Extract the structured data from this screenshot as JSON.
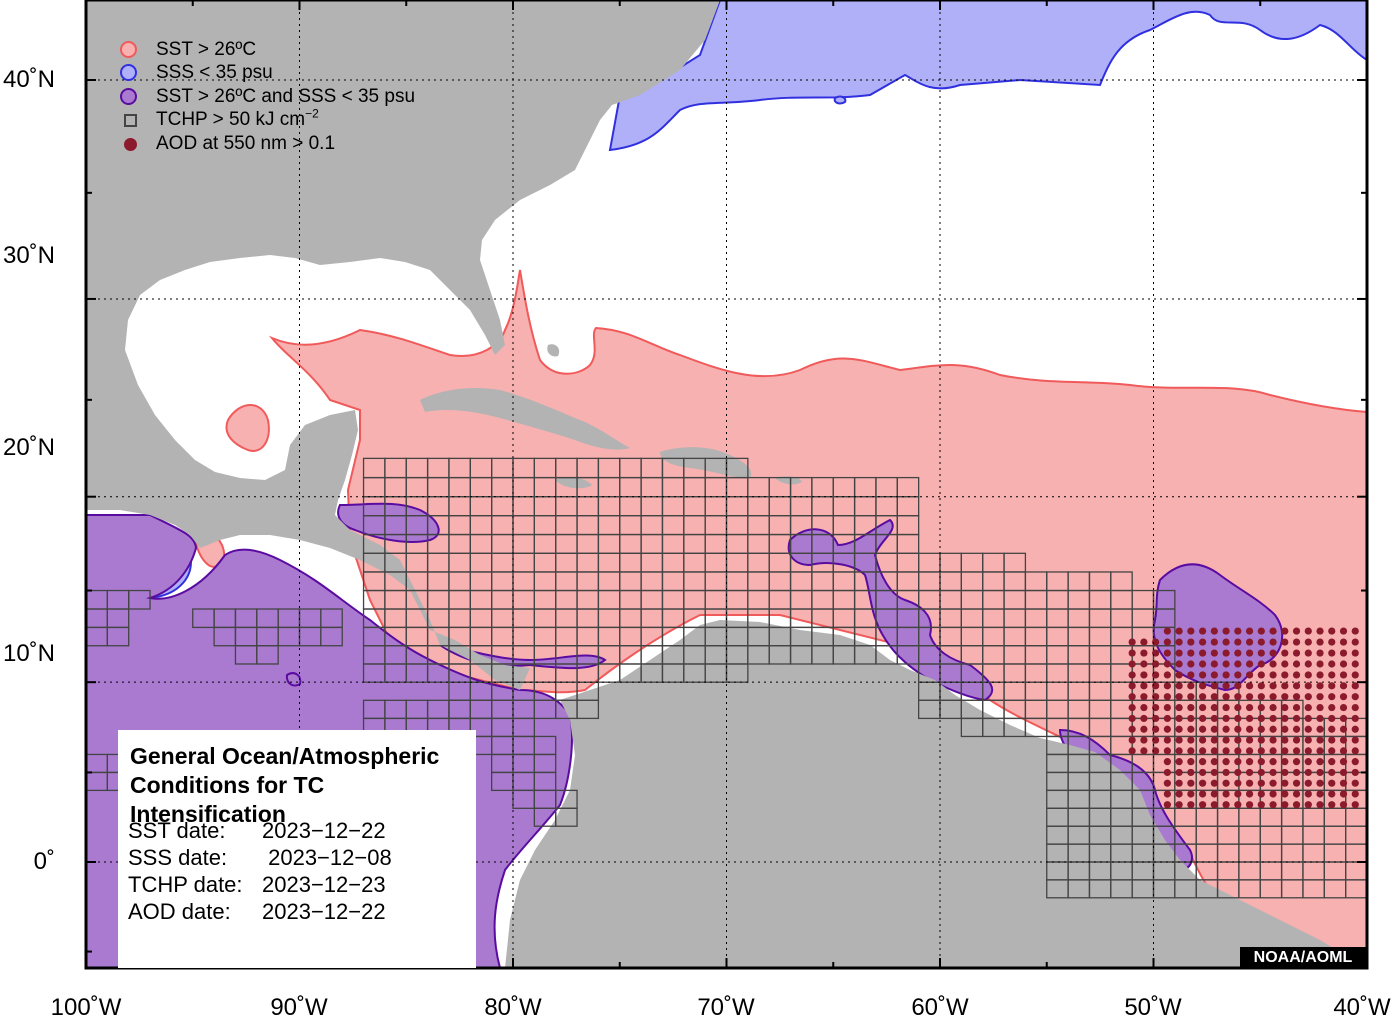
{
  "legend": [
    {
      "label": "SST > 26ºC",
      "symbol": "circle",
      "fill": "#f8b1b1",
      "stroke": "#f05a5a"
    },
    {
      "label": "SSS < 35 psu",
      "symbol": "circle",
      "fill": "#b0b0f8",
      "stroke": "#3030e0"
    },
    {
      "label": "SST > 26ºC and SSS < 35 psu",
      "symbol": "circle",
      "fill": "#a97ad0",
      "stroke": "#5a0ca0"
    },
    {
      "label_main": "TCHP > 50 kJ cm",
      "label_sup": "−2",
      "symbol": "square"
    },
    {
      "label": "AOD at 550 nm > 0.1",
      "symbol": "dot"
    }
  ],
  "info": {
    "title_line1": "General Ocean/Atmospheric",
    "title_line2": "Conditions for TC Intensification",
    "rows": [
      {
        "label": "SST date:",
        "value": "2023−12−22"
      },
      {
        "label": "SSS date:",
        "value": " 2023−12−08"
      },
      {
        "label": "TCHP date:",
        "value": "2023−12−23"
      },
      {
        "label": "AOD date:",
        "value": "2023−12−22"
      }
    ]
  },
  "credit": "NOAA/AOML",
  "axes": {
    "lon_labels": [
      "100˚W",
      "90˚W",
      "80˚W",
      "70˚W",
      "60˚W",
      "50˚W",
      "40˚W"
    ],
    "lat_labels": [
      "40˚N",
      "30˚N",
      "20˚N",
      "10˚N",
      "0˚"
    ],
    "lon_range": [
      -100,
      -40
    ],
    "lat_range": [
      -5,
      44
    ]
  },
  "colors": {
    "land": "#b3b3b3",
    "ocean": "#ffffff",
    "sst": "#f8b1b1",
    "sst_edge": "#f05a5a",
    "sss": "#b0b0f8",
    "sss_edge": "#3030e0",
    "both": "#a97ad0",
    "both_edge": "#5a0ca0",
    "tchp_box": "#444444",
    "aod_dot": "#8a1a2c"
  }
}
